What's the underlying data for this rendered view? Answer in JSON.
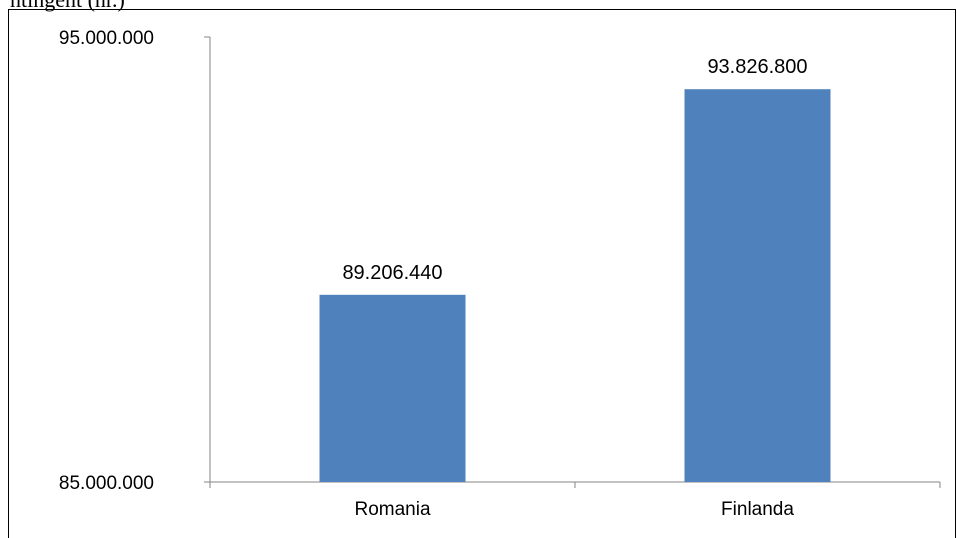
{
  "header_fragment": "ntingent (nr.)",
  "chart_data": {
    "type": "bar",
    "title": "",
    "xlabel": "",
    "ylabel": "",
    "categories": [
      "Romania",
      "Finlanda"
    ],
    "values": [
      89206440,
      93826800
    ],
    "value_labels": [
      "89.206.440",
      "93.826.800"
    ],
    "ylim": [
      85000000,
      95000000
    ],
    "ytick_labels": [
      "95.000.000",
      "85.000.000"
    ],
    "grid": false,
    "legend": "none",
    "bar_color": "#4f81bd",
    "axis_color": "#868686",
    "frame_color": "#000000"
  }
}
